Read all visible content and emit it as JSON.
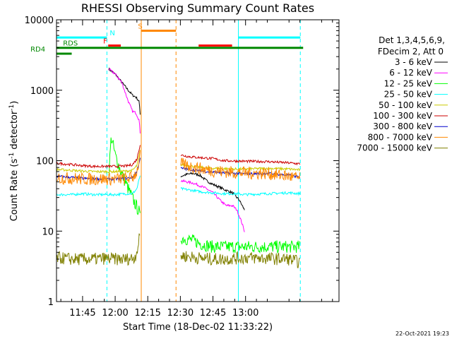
{
  "chart_data": {
    "type": "line",
    "title": "RHESSI Observing Summary Count Rates",
    "xlabel": "Start Time (18-Dec-02 11:33:22)",
    "ylabel_main": "Count Rate (s",
    "ylabel_sup1": "-1",
    "ylabel_mid": " detector",
    "ylabel_sup2": "-1",
    "ylabel_end": ")",
    "y_scale": "log",
    "ylim": [
      1,
      10000
    ],
    "xlim_min": [
      693,
      823
    ],
    "x_ticks": [
      {
        "min": 705,
        "label": "11:45"
      },
      {
        "min": 720,
        "label": "12:00"
      },
      {
        "min": 735,
        "label": "12:15"
      },
      {
        "min": 750,
        "label": "12:30"
      },
      {
        "min": 765,
        "label": "12:45"
      },
      {
        "min": 780,
        "label": "13:00"
      }
    ],
    "y_ticks": [
      {
        "value": 1,
        "label": "1"
      },
      {
        "value": 10,
        "label": "10"
      },
      {
        "value": 100,
        "label": "100"
      },
      {
        "value": 1000,
        "label": "1000"
      },
      {
        "value": 10000,
        "label": "10000"
      }
    ],
    "legend_header": [
      "Det 1,3,4,5,6,9,",
      "FDecim 2, Att 0"
    ],
    "series": [
      {
        "name": "3 - 6 keV",
        "color": "#000000",
        "seg1": [
          [
            717.0,
            2000
          ],
          [
            720,
            1700
          ],
          [
            723,
            1300
          ],
          [
            726,
            1000
          ],
          [
            728,
            850
          ],
          [
            729.5,
            800
          ],
          [
            731.0,
            700
          ],
          [
            731.5,
            450
          ]
        ],
        "seg2": [
          [
            750.2,
            60
          ],
          [
            753,
            64
          ],
          [
            756,
            66
          ],
          [
            759,
            62
          ],
          [
            762,
            52
          ],
          [
            765,
            46
          ],
          [
            768,
            42
          ],
          [
            771,
            38
          ],
          [
            774,
            35
          ],
          [
            776,
            30
          ],
          [
            777,
            28
          ],
          [
            779.5,
            20
          ]
        ]
      },
      {
        "name": "6 - 12 keV",
        "color": "#ff00ff",
        "seg1": [
          [
            717.0,
            2000
          ],
          [
            720,
            1700
          ],
          [
            723,
            1300
          ],
          [
            726,
            700
          ],
          [
            728,
            500
          ],
          [
            729.5,
            480
          ],
          [
            731.0,
            380
          ],
          [
            731.5,
            250
          ]
        ],
        "seg2": [
          [
            750.2,
            52
          ],
          [
            753,
            50
          ],
          [
            756,
            48
          ],
          [
            759,
            44
          ],
          [
            762,
            40
          ],
          [
            765,
            35
          ],
          [
            768,
            28
          ],
          [
            771,
            23
          ],
          [
            774,
            23
          ],
          [
            776,
            20
          ],
          [
            778,
            14
          ],
          [
            779.5,
            10
          ]
        ]
      },
      {
        "name": "12 - 25 keV",
        "color": "#00ff00",
        "seg1": [
          [
            717.0,
            60
          ],
          [
            718.2,
            220
          ],
          [
            720,
            120
          ],
          [
            723,
            65
          ],
          [
            726,
            40
          ],
          [
            729,
            25
          ],
          [
            731.0,
            19
          ],
          [
            731.5,
            15
          ]
        ],
        "seg2": [
          [
            750.2,
            8.0
          ],
          [
            755,
            7.5
          ],
          [
            760,
            6.5
          ],
          [
            765,
            6.0
          ],
          [
            770,
            6.0
          ],
          [
            775,
            6.0
          ],
          [
            780,
            6.0
          ],
          [
            785,
            6.0
          ],
          [
            790,
            6.0
          ],
          [
            800,
            6.0
          ],
          [
            805,
            6.0
          ]
        ]
      },
      {
        "name": "25 - 50 keV",
        "color": "#00ffff",
        "seg1": [
          [
            693,
            33
          ],
          [
            700,
            33
          ],
          [
            705,
            34
          ],
          [
            710,
            33
          ],
          [
            715,
            33
          ],
          [
            720,
            33
          ],
          [
            725,
            34
          ],
          [
            728,
            34
          ],
          [
            730,
            40
          ],
          [
            731.5,
            62
          ]
        ],
        "seg2": [
          [
            750.2,
            40
          ],
          [
            755,
            38
          ],
          [
            760,
            36
          ],
          [
            765,
            35
          ],
          [
            770,
            34
          ],
          [
            775,
            34
          ],
          [
            780,
            33
          ],
          [
            790,
            34
          ],
          [
            800,
            35
          ],
          [
            805,
            34
          ]
        ]
      },
      {
        "name": "50 - 100 keV",
        "color": "#cccc00",
        "seg1": [
          [
            693,
            75
          ],
          [
            700,
            73
          ],
          [
            705,
            71
          ],
          [
            710,
            70
          ],
          [
            715,
            70
          ],
          [
            720,
            70
          ],
          [
            725,
            71
          ],
          [
            728,
            73
          ],
          [
            730,
            85
          ],
          [
            731.5,
            140
          ]
        ],
        "seg2": [
          [
            750.2,
            88
          ],
          [
            755,
            84
          ],
          [
            760,
            80
          ],
          [
            765,
            78
          ],
          [
            770,
            77
          ],
          [
            775,
            76
          ],
          [
            780,
            76
          ],
          [
            790,
            78
          ],
          [
            800,
            76
          ],
          [
            805,
            74
          ]
        ]
      },
      {
        "name": "100 - 300 keV",
        "color": "#cc0000",
        "seg1": [
          [
            693,
            92
          ],
          [
            700,
            88
          ],
          [
            705,
            85
          ],
          [
            710,
            83
          ],
          [
            715,
            83
          ],
          [
            720,
            83
          ],
          [
            725,
            84
          ],
          [
            728,
            88
          ],
          [
            730,
            105
          ],
          [
            731.5,
            170
          ]
        ],
        "seg2": [
          [
            750.2,
            120
          ],
          [
            755,
            113
          ],
          [
            760,
            110
          ],
          [
            765,
            107
          ],
          [
            770,
            100
          ],
          [
            775,
            99
          ],
          [
            780,
            98
          ],
          [
            790,
            97
          ],
          [
            800,
            93
          ],
          [
            805,
            90
          ]
        ]
      },
      {
        "name": "300 - 800 keV",
        "color": "#0000cc",
        "seg1": [
          [
            693,
            60
          ],
          [
            700,
            58
          ],
          [
            705,
            56
          ],
          [
            710,
            55
          ],
          [
            715,
            55
          ],
          [
            720,
            55
          ],
          [
            725,
            56
          ],
          [
            728,
            58
          ],
          [
            730,
            70
          ],
          [
            731.5,
            110
          ]
        ],
        "seg2": [
          [
            750.2,
            78
          ],
          [
            755,
            74
          ],
          [
            760,
            71
          ],
          [
            765,
            69
          ],
          [
            770,
            67
          ],
          [
            775,
            66
          ],
          [
            780,
            65
          ],
          [
            790,
            66
          ],
          [
            800,
            62
          ],
          [
            805,
            58
          ]
        ]
      },
      {
        "name": "800 - 7000 keV",
        "color": "#ff8800",
        "seg1": [
          [
            693,
            57
          ],
          [
            700,
            56
          ],
          [
            705,
            55
          ],
          [
            710,
            55
          ],
          [
            715,
            55
          ],
          [
            720,
            55
          ],
          [
            725,
            56
          ],
          [
            728,
            58
          ],
          [
            730,
            70
          ],
          [
            731.5,
            115
          ]
        ],
        "seg2": [
          [
            750.2,
            90
          ],
          [
            755,
            82
          ],
          [
            760,
            76
          ],
          [
            765,
            72
          ],
          [
            770,
            70
          ],
          [
            775,
            68
          ],
          [
            780,
            67
          ],
          [
            790,
            66
          ],
          [
            800,
            60
          ],
          [
            805,
            56
          ]
        ]
      },
      {
        "name": "7000 - 15000 keV",
        "color": "#808000",
        "seg1": [
          [
            693,
            4.2
          ],
          [
            700,
            4.0
          ],
          [
            705,
            4.0
          ],
          [
            710,
            4.0
          ],
          [
            715,
            4.1
          ],
          [
            720,
            4.0
          ],
          [
            725,
            4.0
          ],
          [
            729,
            4.2
          ],
          [
            730.5,
            6.0
          ],
          [
            731.3,
            8.5
          ]
        ],
        "seg2": [
          [
            750.2,
            4.5
          ],
          [
            755,
            4.3
          ],
          [
            760,
            4.1
          ],
          [
            765,
            4.0
          ],
          [
            770,
            4.0
          ],
          [
            775,
            4.1
          ],
          [
            780,
            4.2
          ],
          [
            790,
            4.1
          ],
          [
            800,
            4.0
          ],
          [
            805,
            3.6
          ]
        ]
      }
    ],
    "vertical_markers": [
      {
        "min": 716.2,
        "color": "#00ffff",
        "style": "dashed"
      },
      {
        "min": 732.0,
        "color": "#ff8800",
        "style": "solid"
      },
      {
        "min": 748.0,
        "color": "#ff8800",
        "style": "dashed"
      },
      {
        "min": 776.7,
        "color": "#00ffff",
        "style": "solid"
      },
      {
        "min": 805.2,
        "color": "#00ffff",
        "style": "dashed"
      }
    ],
    "flag_bars": [
      {
        "label": "N",
        "color": "#00ffff",
        "from": 693,
        "to": 716.2,
        "value": 5600,
        "label_at": 717.5
      },
      {
        "label": "N",
        "color": "#00ffff",
        "from": 776.7,
        "to": 805.2,
        "value": 5600,
        "label_at": null
      },
      {
        "label": "S",
        "color": "#ff8800",
        "from": 732.0,
        "to": 748.0,
        "value": 7000,
        "label_at": 730.5
      },
      {
        "label": "F",
        "color": "#ff0000",
        "from": 716.8,
        "to": 722.6,
        "value": 4300,
        "label_at": 714.5
      },
      {
        "label": "F",
        "color": "#ff0000",
        "from": 758.4,
        "to": 773.8,
        "value": 4300,
        "label_at": null
      },
      {
        "label": "RDS",
        "color": "#008800",
        "from": 693,
        "to": 806.5,
        "value": 4000,
        "label_at": 696
      },
      {
        "label": "RD4",
        "color": "#008800",
        "from": 693,
        "to": 700.0,
        "value": 3300,
        "label_at": 681
      }
    ],
    "timestamp": "22-Oct-2021 19:23"
  }
}
